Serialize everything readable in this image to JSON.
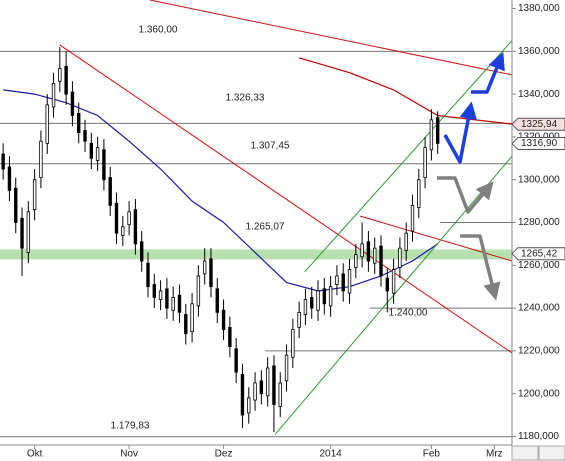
{
  "chart_data": {
    "type": "candlestick",
    "x": [
      0,
      1,
      2,
      3,
      4,
      5,
      6,
      7,
      8,
      9,
      10,
      11,
      12,
      13,
      14,
      15,
      16,
      17,
      18,
      19,
      20,
      21,
      22,
      23,
      24,
      25,
      26,
      27,
      28,
      29,
      30,
      31,
      32,
      33,
      34,
      35,
      36,
      37,
      38,
      39,
      40,
      41,
      42,
      43,
      44,
      45,
      46,
      47,
      48,
      49,
      50,
      51,
      52,
      53,
      54,
      55,
      56,
      57,
      58,
      59,
      60,
      61,
      62,
      63,
      64,
      65,
      66,
      67,
      68,
      69
    ],
    "open": [
      1312,
      1306,
      1296,
      1282,
      1266,
      1286,
      1301,
      1317,
      1334,
      1346,
      1353,
      1341,
      1331,
      1323,
      1317,
      1309,
      1314,
      1301,
      1289,
      1274,
      1279,
      1286,
      1271,
      1261,
      1251,
      1244,
      1249,
      1239,
      1246,
      1237,
      1229,
      1241,
      1256,
      1263,
      1249,
      1239,
      1231,
      1221,
      1209,
      1191,
      1197,
      1206,
      1199,
      1213,
      1194,
      1206,
      1217,
      1231,
      1237,
      1245,
      1239,
      1249,
      1241,
      1251,
      1256,
      1247,
      1259,
      1264,
      1271,
      1261,
      1269,
      1254,
      1247,
      1259,
      1267,
      1276,
      1287,
      1301,
      1314,
      1329
    ],
    "high": [
      1317,
      1311,
      1301,
      1287,
      1290,
      1305,
      1323,
      1340,
      1350,
      1362,
      1360,
      1346,
      1336,
      1328,
      1322,
      1320,
      1319,
      1306,
      1294,
      1283,
      1290,
      1291,
      1276,
      1266,
      1256,
      1253,
      1254,
      1250,
      1251,
      1242,
      1247,
      1260,
      1268,
      1268,
      1254,
      1244,
      1236,
      1226,
      1214,
      1203,
      1210,
      1211,
      1217,
      1218,
      1210,
      1223,
      1235,
      1243,
      1249,
      1250,
      1253,
      1254,
      1255,
      1260,
      1261,
      1263,
      1270,
      1280,
      1276,
      1273,
      1274,
      1259,
      1263,
      1273,
      1280,
      1293,
      1305,
      1320,
      1333,
      1332
    ],
    "low": [
      1300,
      1290,
      1275,
      1255,
      1261,
      1281,
      1296,
      1312,
      1329,
      1341,
      1335,
      1325,
      1317,
      1313,
      1305,
      1304,
      1295,
      1283,
      1270,
      1269,
      1274,
      1265,
      1257,
      1245,
      1240,
      1239,
      1235,
      1234,
      1233,
      1223,
      1224,
      1236,
      1251,
      1245,
      1233,
      1225,
      1217,
      1205,
      1184,
      1186,
      1192,
      1195,
      1194,
      1182,
      1189,
      1201,
      1212,
      1226,
      1232,
      1235,
      1234,
      1237,
      1236,
      1246,
      1243,
      1242,
      1254,
      1259,
      1257,
      1256,
      1250,
      1238,
      1242,
      1254,
      1262,
      1271,
      1282,
      1296,
      1309,
      1312
    ],
    "close": [
      1305,
      1295,
      1280,
      1268,
      1285,
      1300,
      1318,
      1335,
      1345,
      1352,
      1340,
      1330,
      1322,
      1318,
      1310,
      1315,
      1300,
      1288,
      1275,
      1278,
      1285,
      1270,
      1262,
      1250,
      1245,
      1248,
      1240,
      1245,
      1238,
      1228,
      1242,
      1255,
      1262,
      1250,
      1238,
      1230,
      1222,
      1210,
      1190,
      1198,
      1205,
      1200,
      1212,
      1195,
      1205,
      1218,
      1230,
      1238,
      1244,
      1240,
      1248,
      1242,
      1250,
      1255,
      1248,
      1258,
      1265,
      1270,
      1262,
      1268,
      1255,
      1248,
      1258,
      1268,
      1275,
      1288,
      1300,
      1315,
      1328,
      1317
    ],
    "overlays": [
      {
        "color": "#1a1aa8",
        "x": [
          0,
          5,
          10,
          15,
          20,
          25,
          30,
          35,
          40,
          45,
          50,
          55,
          60,
          65,
          69
        ],
        "values": [
          1342,
          1340,
          1336,
          1330,
          1318,
          1305,
          1290,
          1280,
          1266,
          1252,
          1248,
          1250,
          1255,
          1262,
          1270
        ]
      },
      {
        "color": "#c00000",
        "x": [
          47,
          55,
          62,
          69,
          80.8
        ],
        "values": [
          1357,
          1350,
          1342,
          1330,
          1326
        ]
      },
      {
        "color": "#d01010",
        "x": [
          9,
          80.8
        ],
        "values": [
          1363,
          1219
        ]
      },
      {
        "color": "#d01010",
        "x": [
          23.3,
          80.8
        ],
        "values": [
          1384,
          1349
        ]
      },
      {
        "color": "#d01010",
        "x": [
          56.7,
          80.8
        ],
        "values": [
          1283,
          1262
        ]
      },
      {
        "color": "#2a9a2a",
        "x": [
          43.2,
          80.8
        ],
        "values": [
          1181,
          1311
        ]
      },
      {
        "color": "#2a9a2a",
        "x": [
          47.9,
          80.8
        ],
        "values": [
          1257,
          1365
        ]
      }
    ],
    "levels": [
      {
        "value": 1360,
        "label": "1.360,00"
      },
      {
        "value": 1326.33,
        "label": "1.326,33"
      },
      {
        "value": 1307.45,
        "label": "1.307,45"
      },
      {
        "value": 1265.07,
        "label": "1.265,07"
      },
      {
        "value": 1240,
        "label": "1.240,00"
      },
      {
        "value": 1179.83,
        "label": "1.179,83"
      }
    ],
    "extra_levels": [
      1280,
      1220
    ],
    "price_tags": [
      {
        "value": 1325.94,
        "label": "1325,94"
      },
      {
        "value": 1316.9,
        "label": "1316,90"
      },
      {
        "value": 1265.42,
        "label": "1265,42"
      }
    ],
    "xlim": [
      -0.5,
      80.8
    ],
    "xticks": [
      {
        "value": 5,
        "label": "Okt"
      },
      {
        "value": 20,
        "label": "Nov"
      },
      {
        "value": 35,
        "label": "Dez"
      },
      {
        "value": 52,
        "label": "2014"
      },
      {
        "value": 68,
        "label": "Feb"
      },
      {
        "value": 78,
        "label": "Mrz"
      }
    ],
    "ylim": [
      1176,
      1384
    ],
    "yticks": [
      {
        "value": 1180,
        "label": "1180,000"
      },
      {
        "value": 1200,
        "label": "1200,000"
      },
      {
        "value": 1220,
        "label": "1220,000"
      },
      {
        "value": 1240,
        "label": "1240,000"
      },
      {
        "value": 1260,
        "label": "1260,000"
      },
      {
        "value": 1280,
        "label": "1280,000"
      },
      {
        "value": 1300,
        "label": "1300,000"
      },
      {
        "value": 1320,
        "label": "1320,000"
      },
      {
        "value": 1340,
        "label": "1340,000"
      },
      {
        "value": 1360,
        "label": "1360,000"
      },
      {
        "value": 1380,
        "label": "1380,000"
      }
    ]
  }
}
